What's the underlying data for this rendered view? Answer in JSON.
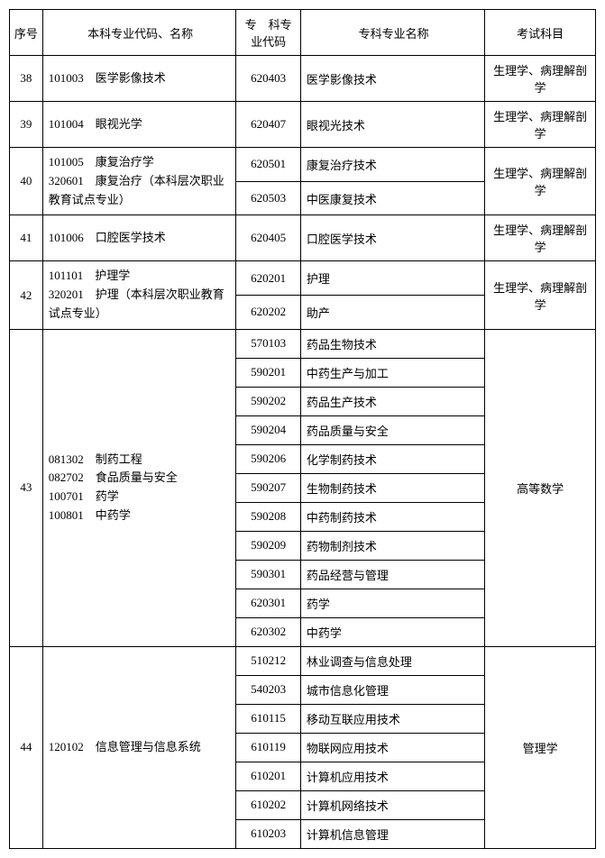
{
  "headers": {
    "seq": "序号",
    "major": "本科专业代码、名称",
    "code": "专　科专业代码",
    "cname": "专科专业名称",
    "exam": "考试科目"
  },
  "rows": [
    {
      "seq": "38",
      "major": "101003　医学影像技术",
      "subs": [
        {
          "code": "620403",
          "cname": "医学影像技术"
        }
      ],
      "exam": "生理学、病理解剖学"
    },
    {
      "seq": "39",
      "major": "101004　眼视光学",
      "subs": [
        {
          "code": "620407",
          "cname": "眼视光技术"
        }
      ],
      "exam": "生理学、病理解剖学"
    },
    {
      "seq": "40",
      "major": "101005　康复治疗学\n320601　康复治疗（本科层次职业教育试点专业）",
      "subs": [
        {
          "code": "620501",
          "cname": "康复治疗技术"
        },
        {
          "code": "620503",
          "cname": "中医康复技术"
        }
      ],
      "exam": "生理学、病理解剖学"
    },
    {
      "seq": "41",
      "major": "101006　口腔医学技术",
      "subs": [
        {
          "code": "620405",
          "cname": "口腔医学技术"
        }
      ],
      "exam": "生理学、病理解剖学"
    },
    {
      "seq": "42",
      "major": "101101　护理学\n320201　护理（本科层次职业教育试点专业）",
      "subs": [
        {
          "code": "620201",
          "cname": "护理"
        },
        {
          "code": "620202",
          "cname": "助产"
        }
      ],
      "exam": "生理学、病理解剖学"
    },
    {
      "seq": "43",
      "major": "081302　制药工程\n082702　食品质量与安全\n100701　药学\n100801　中药学",
      "subs": [
        {
          "code": "570103",
          "cname": "药品生物技术"
        },
        {
          "code": "590201",
          "cname": "中药生产与加工"
        },
        {
          "code": "590202",
          "cname": "药品生产技术"
        },
        {
          "code": "590204",
          "cname": "药品质量与安全"
        },
        {
          "code": "590206",
          "cname": "化学制药技术"
        },
        {
          "code": "590207",
          "cname": "生物制药技术"
        },
        {
          "code": "590208",
          "cname": "中药制药技术"
        },
        {
          "code": "590209",
          "cname": "药物制剂技术"
        },
        {
          "code": "590301",
          "cname": "药品经营与管理"
        },
        {
          "code": "620301",
          "cname": "药学"
        },
        {
          "code": "620302",
          "cname": "中药学"
        }
      ],
      "exam": "高等数学"
    },
    {
      "seq": "44",
      "major": "120102　信息管理与信息系统",
      "subs": [
        {
          "code": "510212",
          "cname": "林业调查与信息处理"
        },
        {
          "code": "540203",
          "cname": "城市信息化管理"
        },
        {
          "code": "610115",
          "cname": "移动互联应用技术"
        },
        {
          "code": "610119",
          "cname": "物联网应用技术"
        },
        {
          "code": "610201",
          "cname": "计算机应用技术"
        },
        {
          "code": "610202",
          "cname": "计算机网络技术"
        },
        {
          "code": "610203",
          "cname": "计算机信息管理"
        }
      ],
      "exam": "管理学"
    }
  ]
}
